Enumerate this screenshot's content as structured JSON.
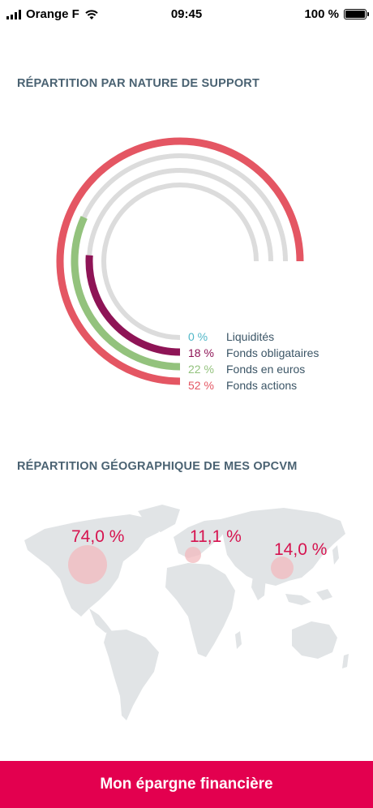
{
  "status_bar": {
    "carrier": "Orange F",
    "time": "09:45",
    "battery": "100 %"
  },
  "section1": {
    "title": "RÉPARTITION PAR NATURE DE SUPPORT"
  },
  "section2": {
    "title": "RÉPARTITION GÉOGRAPHIQUE DE MES OPCVM"
  },
  "chart_data": {
    "type": "radial-bar",
    "series": [
      {
        "name": "Liquidités",
        "label": "0 %",
        "value": 0,
        "color": "#4fb6c7"
      },
      {
        "name": "Fonds obligataires",
        "label": "18 %",
        "value": 18,
        "color": "#8e1456"
      },
      {
        "name": "Fonds en euros",
        "label": "22 %",
        "value": 22,
        "color": "#93c27d"
      },
      {
        "name": "Fonds actions",
        "label": "52 %",
        "value": 52,
        "color": "#e45663"
      }
    ],
    "track_color": "#dcdcdc"
  },
  "geo": {
    "regions": [
      {
        "label": "74,0 %",
        "value": 74.0
      },
      {
        "label": "11,1 %",
        "value": 11.1
      },
      {
        "label": "14,0 %",
        "value": 14.0
      }
    ],
    "bubble_color": "#f2b9bd",
    "label_color": "#d6134f",
    "map_color": "#e1e4e6"
  },
  "bottom_bar": {
    "label": "Mon épargne financière",
    "color": "#e3004f"
  }
}
